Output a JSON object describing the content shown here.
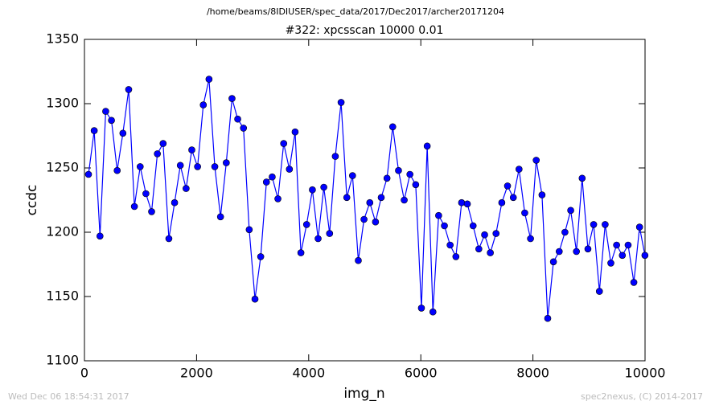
{
  "chart_data": {
    "type": "line",
    "suptitle": "/home/beams/8IDIUSER/spec_data/2017/Dec2017/archer20171204",
    "title": "#322: xpcsscan 10000 0.01",
    "x_label": "img_n",
    "y_label": "ccdc",
    "x": [
      72,
      174,
      277,
      379,
      482,
      584,
      686,
      789,
      891,
      994,
      1096,
      1198,
      1301,
      1403,
      1506,
      1608,
      1710,
      1813,
      1915,
      2018,
      2120,
      2222,
      2325,
      2427,
      2530,
      2632,
      2734,
      2837,
      2939,
      3042,
      3144,
      3246,
      3349,
      3451,
      3554,
      3656,
      3758,
      3861,
      3963,
      4066,
      4168,
      4270,
      4373,
      4475,
      4578,
      4680,
      4782,
      4885,
      4987,
      5090,
      5192,
      5294,
      5397,
      5499,
      5602,
      5704,
      5806,
      5909,
      6011,
      6114,
      6216,
      6318,
      6421,
      6523,
      6626,
      6728,
      6830,
      6933,
      7035,
      7138,
      7240,
      7342,
      7445,
      7547,
      7650,
      7752,
      7854,
      7957,
      8059,
      8162,
      8264,
      8366,
      8469,
      8571,
      8674,
      8776,
      8878,
      8981,
      9083,
      9186,
      9288,
      9390,
      9493,
      9595,
      9698,
      9800,
      9902,
      9998
    ],
    "series": [
      {
        "color": "#0000ff",
        "values": [
          1245,
          1279,
          1197,
          1294,
          1287,
          1248,
          1277,
          1311,
          1220,
          1251,
          1230,
          1216,
          1261,
          1269,
          1195,
          1223,
          1252,
          1234,
          1264,
          1251,
          1299,
          1319,
          1251,
          1212,
          1254,
          1304,
          1288,
          1281,
          1202,
          1148,
          1181,
          1239,
          1243,
          1226,
          1269,
          1249,
          1278,
          1184,
          1206,
          1233,
          1195,
          1235,
          1199,
          1259,
          1301,
          1227,
          1244,
          1178,
          1210,
          1223,
          1208,
          1227,
          1242,
          1282,
          1248,
          1225,
          1245,
          1237,
          1141,
          1267,
          1138,
          1213,
          1205,
          1190,
          1181,
          1223,
          1222,
          1205,
          1187,
          1198,
          1184,
          1199,
          1223,
          1236,
          1227,
          1249,
          1215,
          1195,
          1256,
          1229,
          1133,
          1177,
          1185,
          1200,
          1217,
          1185,
          1242,
          1187,
          1206,
          1154,
          1206,
          1176,
          1190,
          1182,
          1190,
          1161,
          1204,
          1182
        ]
      }
    ],
    "xlim": [
      0,
      10000
    ],
    "xticks": [
      0,
      2000,
      4000,
      6000,
      8000,
      10000
    ],
    "ylim": [
      1100,
      1350
    ],
    "yticks": [
      1100,
      1150,
      1200,
      1250,
      1300,
      1350
    ],
    "grid": false
  },
  "footer": {
    "left": "Wed Dec 06 18:54:31 2017",
    "right": "spec2nexus, (C) 2014-2017"
  }
}
